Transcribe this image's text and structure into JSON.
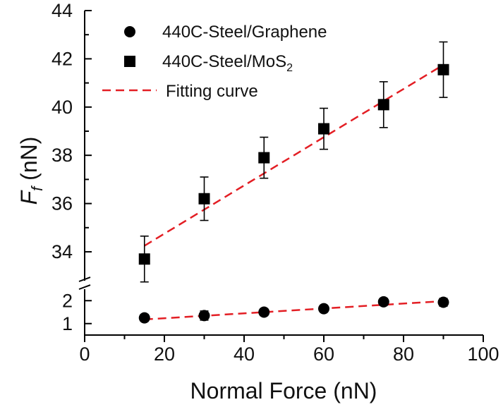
{
  "chart_data": {
    "type": "scatter",
    "title": "",
    "xlabel": "Normal Force (nN)",
    "ylabel": {
      "symbol": "F",
      "subscript": "f",
      "unit": " (nN)"
    },
    "xlim": [
      0,
      100
    ],
    "x_ticks": [
      "0",
      "20",
      "40",
      "60",
      "80",
      "100"
    ],
    "y_broken_axis": true,
    "y_upper_range": [
      32.8,
      44
    ],
    "y_upper_ticks": [
      "34",
      "36",
      "38",
      "40",
      "42",
      "44"
    ],
    "y_lower_range": [
      0.5,
      2.5
    ],
    "y_lower_ticks": [
      "1",
      "2"
    ],
    "grid": false,
    "legend_position": "top-left",
    "fit_color": "#e31e24",
    "marker_color": "#000000",
    "series": [
      {
        "name": "440C-Steel/Graphene",
        "marker": "circle",
        "x": [
          15,
          30,
          45,
          60,
          75,
          90
        ],
        "y": [
          1.25,
          1.35,
          1.5,
          1.65,
          1.95,
          1.93
        ],
        "err": [
          0.15,
          0.2,
          0.15,
          0.15,
          0.15,
          0.17
        ]
      },
      {
        "name": "440C-Steel/MoS",
        "name_subscript": "2",
        "marker": "square",
        "x": [
          15,
          30,
          45,
          60,
          75,
          90
        ],
        "y": [
          33.7,
          36.2,
          37.9,
          39.1,
          40.1,
          41.55
        ],
        "err": [
          0.95,
          0.9,
          0.85,
          0.85,
          0.95,
          1.15
        ]
      }
    ],
    "fits": [
      {
        "name": "Fitting curve",
        "x_range": [
          15,
          90
        ],
        "y_values_upper": [
          34.25,
          41.75
        ],
        "y_values_lower": [
          1.18,
          1.98
        ]
      }
    ]
  }
}
